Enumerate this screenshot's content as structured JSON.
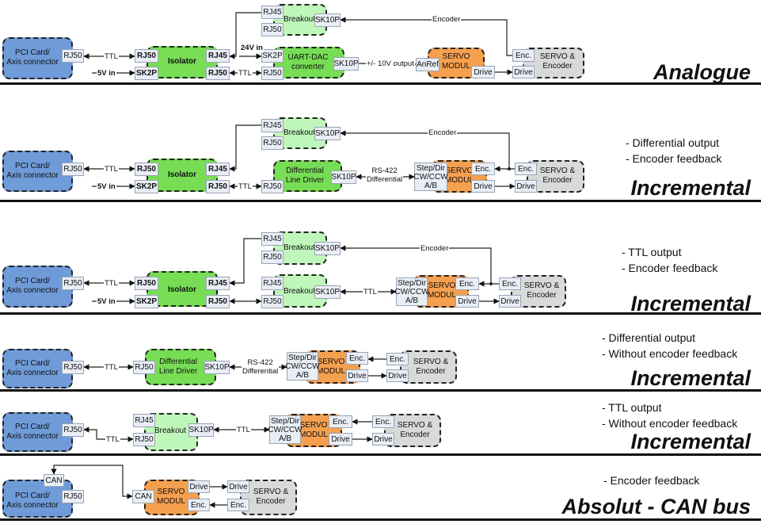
{
  "colors": {
    "pci": "#6f9bd8",
    "isolator": "#77dd55",
    "breakout": "#bff7bb",
    "servo_modul": "#f5a04f",
    "servo_encoder": "#d9d9d9"
  },
  "sections": [
    {
      "title": "Analogue",
      "notes": [],
      "pci": "PCI Card/\nAxis connector",
      "pci_rj50": "RJ50",
      "iso": "Isolator",
      "iso_rj50": "RJ50",
      "iso_sk2p": "SK2P",
      "iso_rj45": "RJ45",
      "iso_rj50b": "RJ50",
      "brk": "Breakout",
      "brk_rj45": "RJ45",
      "brk_rj50": "RJ50",
      "brk_sk10p": "SK10P",
      "uart": "UART-DAC\nconverter",
      "uart_sk2p": "SK2P",
      "uart_rj50": "RJ50",
      "uart_sk10p": "SK10P",
      "servo": "SERVO\nMODUL",
      "servo_anref": "AnRef",
      "servo_drive": "Drive",
      "motor": "SERVO &\nEncoder",
      "motor_enc": "Enc.",
      "motor_drive": "Drive",
      "l_ttl1": "TTL",
      "l_5v": "5V in",
      "l_24v": "24V in",
      "l_ttl2": "TTL",
      "l_out": "+/- 10V output",
      "l_enc": "Encoder"
    },
    {
      "title": "Incremental",
      "notes": [
        "- Differential output",
        "- Encoder feedback"
      ],
      "pci": "PCI Card/\nAxis connector",
      "pci_rj50": "RJ50",
      "iso": "Isolator",
      "iso_rj50": "RJ50",
      "iso_sk2p": "SK2P",
      "iso_rj45": "RJ45",
      "iso_rj50b": "RJ50",
      "brk": "Breakout",
      "brk_rj45": "RJ45",
      "brk_rj50": "RJ50",
      "brk_sk10p": "SK10P",
      "dld": "Differential\nLine Driver",
      "dld_rj50": "RJ50",
      "dld_sk10p": "SK10P",
      "stepdir": "Step/Dir\nCW/CCW\nA/B",
      "servo": "SERVO\nMODUL",
      "servo_enc": "Enc.",
      "servo_drive": "Drive",
      "motor": "SERVO &\nEncoder",
      "motor_enc": "Enc.",
      "motor_drive": "Drive",
      "l_ttl1": "TTL",
      "l_5v": "5V in",
      "l_ttl2": "TTL",
      "l_rs422": "RS-422\nDifferential",
      "l_enc": "Encoder"
    },
    {
      "title": "Incremental",
      "notes": [
        "- TTL output",
        "- Encoder feedback"
      ],
      "pci": "PCI Card/\nAxis connector",
      "pci_rj50": "RJ50",
      "iso": "Isolator",
      "iso_rj50": "RJ50",
      "iso_sk2p": "SK2P",
      "iso_rj45": "RJ45",
      "iso_rj50b": "RJ50",
      "brk": "Breakout",
      "brk_rj45": "RJ45",
      "brk_rj50": "RJ50",
      "brk_sk10p": "SK10P",
      "brk2": "Breakout",
      "brk2_rj45": "RJ45",
      "brk2_rj50": "RJ50",
      "brk2_sk10p": "SK10P",
      "stepdir": "Step/Dir\nCW/CCW\nA/B",
      "servo": "SERVO\nMODUL",
      "servo_enc": "Enc.",
      "servo_drive": "Drive",
      "motor": "SERVO &\nEncoder",
      "motor_enc": "Enc.",
      "motor_drive": "Drive",
      "l_ttl1": "TTL",
      "l_5v": "5V in",
      "l_ttl3": "TTL",
      "l_enc": "Encoder"
    },
    {
      "title": "Incremental",
      "notes": [
        "- Differential output",
        "- Without encoder feedback"
      ],
      "pci": "PCI Card/\nAxis connector",
      "pci_rj50": "RJ50",
      "dld": "Differential\nLine Driver",
      "dld_rj50": "RJ50",
      "dld_sk10p": "SK10P",
      "stepdir": "Step/Dir\nCW/CCW\nA/B",
      "servo": "SERVO\nMODUL",
      "servo_enc": "Enc.",
      "servo_drive": "Drive",
      "motor": "SERVO &\nEncoder",
      "motor_enc": "Enc.",
      "motor_drive": "Drive",
      "l_ttl1": "TTL",
      "l_rs422": "RS-422\nDifferential"
    },
    {
      "title": "Incremental",
      "notes": [
        "- TTL output",
        "- Without encoder feedback"
      ],
      "pci": "PCI Card/\nAxis connector",
      "pci_rj50": "RJ50",
      "brk": "Breakout",
      "brk_rj45": "RJ45",
      "brk_rj50": "RJ50",
      "brk_sk10p": "SK10P",
      "stepdir": "Step/Dir\nCW/CCW\nA/B",
      "servo": "SERVO\nMODUL",
      "servo_enc": "Enc.",
      "servo_drive": "Drive",
      "motor": "SERVO &\nEncoder",
      "motor_enc": "Enc.",
      "motor_drive": "Drive",
      "l_ttl1": "TTL",
      "l_ttl2": "TTL"
    },
    {
      "title": "Absolut - CAN bus",
      "notes": [
        "- Encoder feedback"
      ],
      "pci": "PCI Card/\nAxis connector",
      "pci_can": "CAN",
      "pci_rj50": "RJ50",
      "servo": "SERVO\nMODUL",
      "servo_can": "CAN",
      "servo_drive": "Drive",
      "servo_enc": "Enc.",
      "motor": "SERVO &\nEncoder",
      "motor_drive": "Drive",
      "motor_enc": "Enc."
    }
  ]
}
